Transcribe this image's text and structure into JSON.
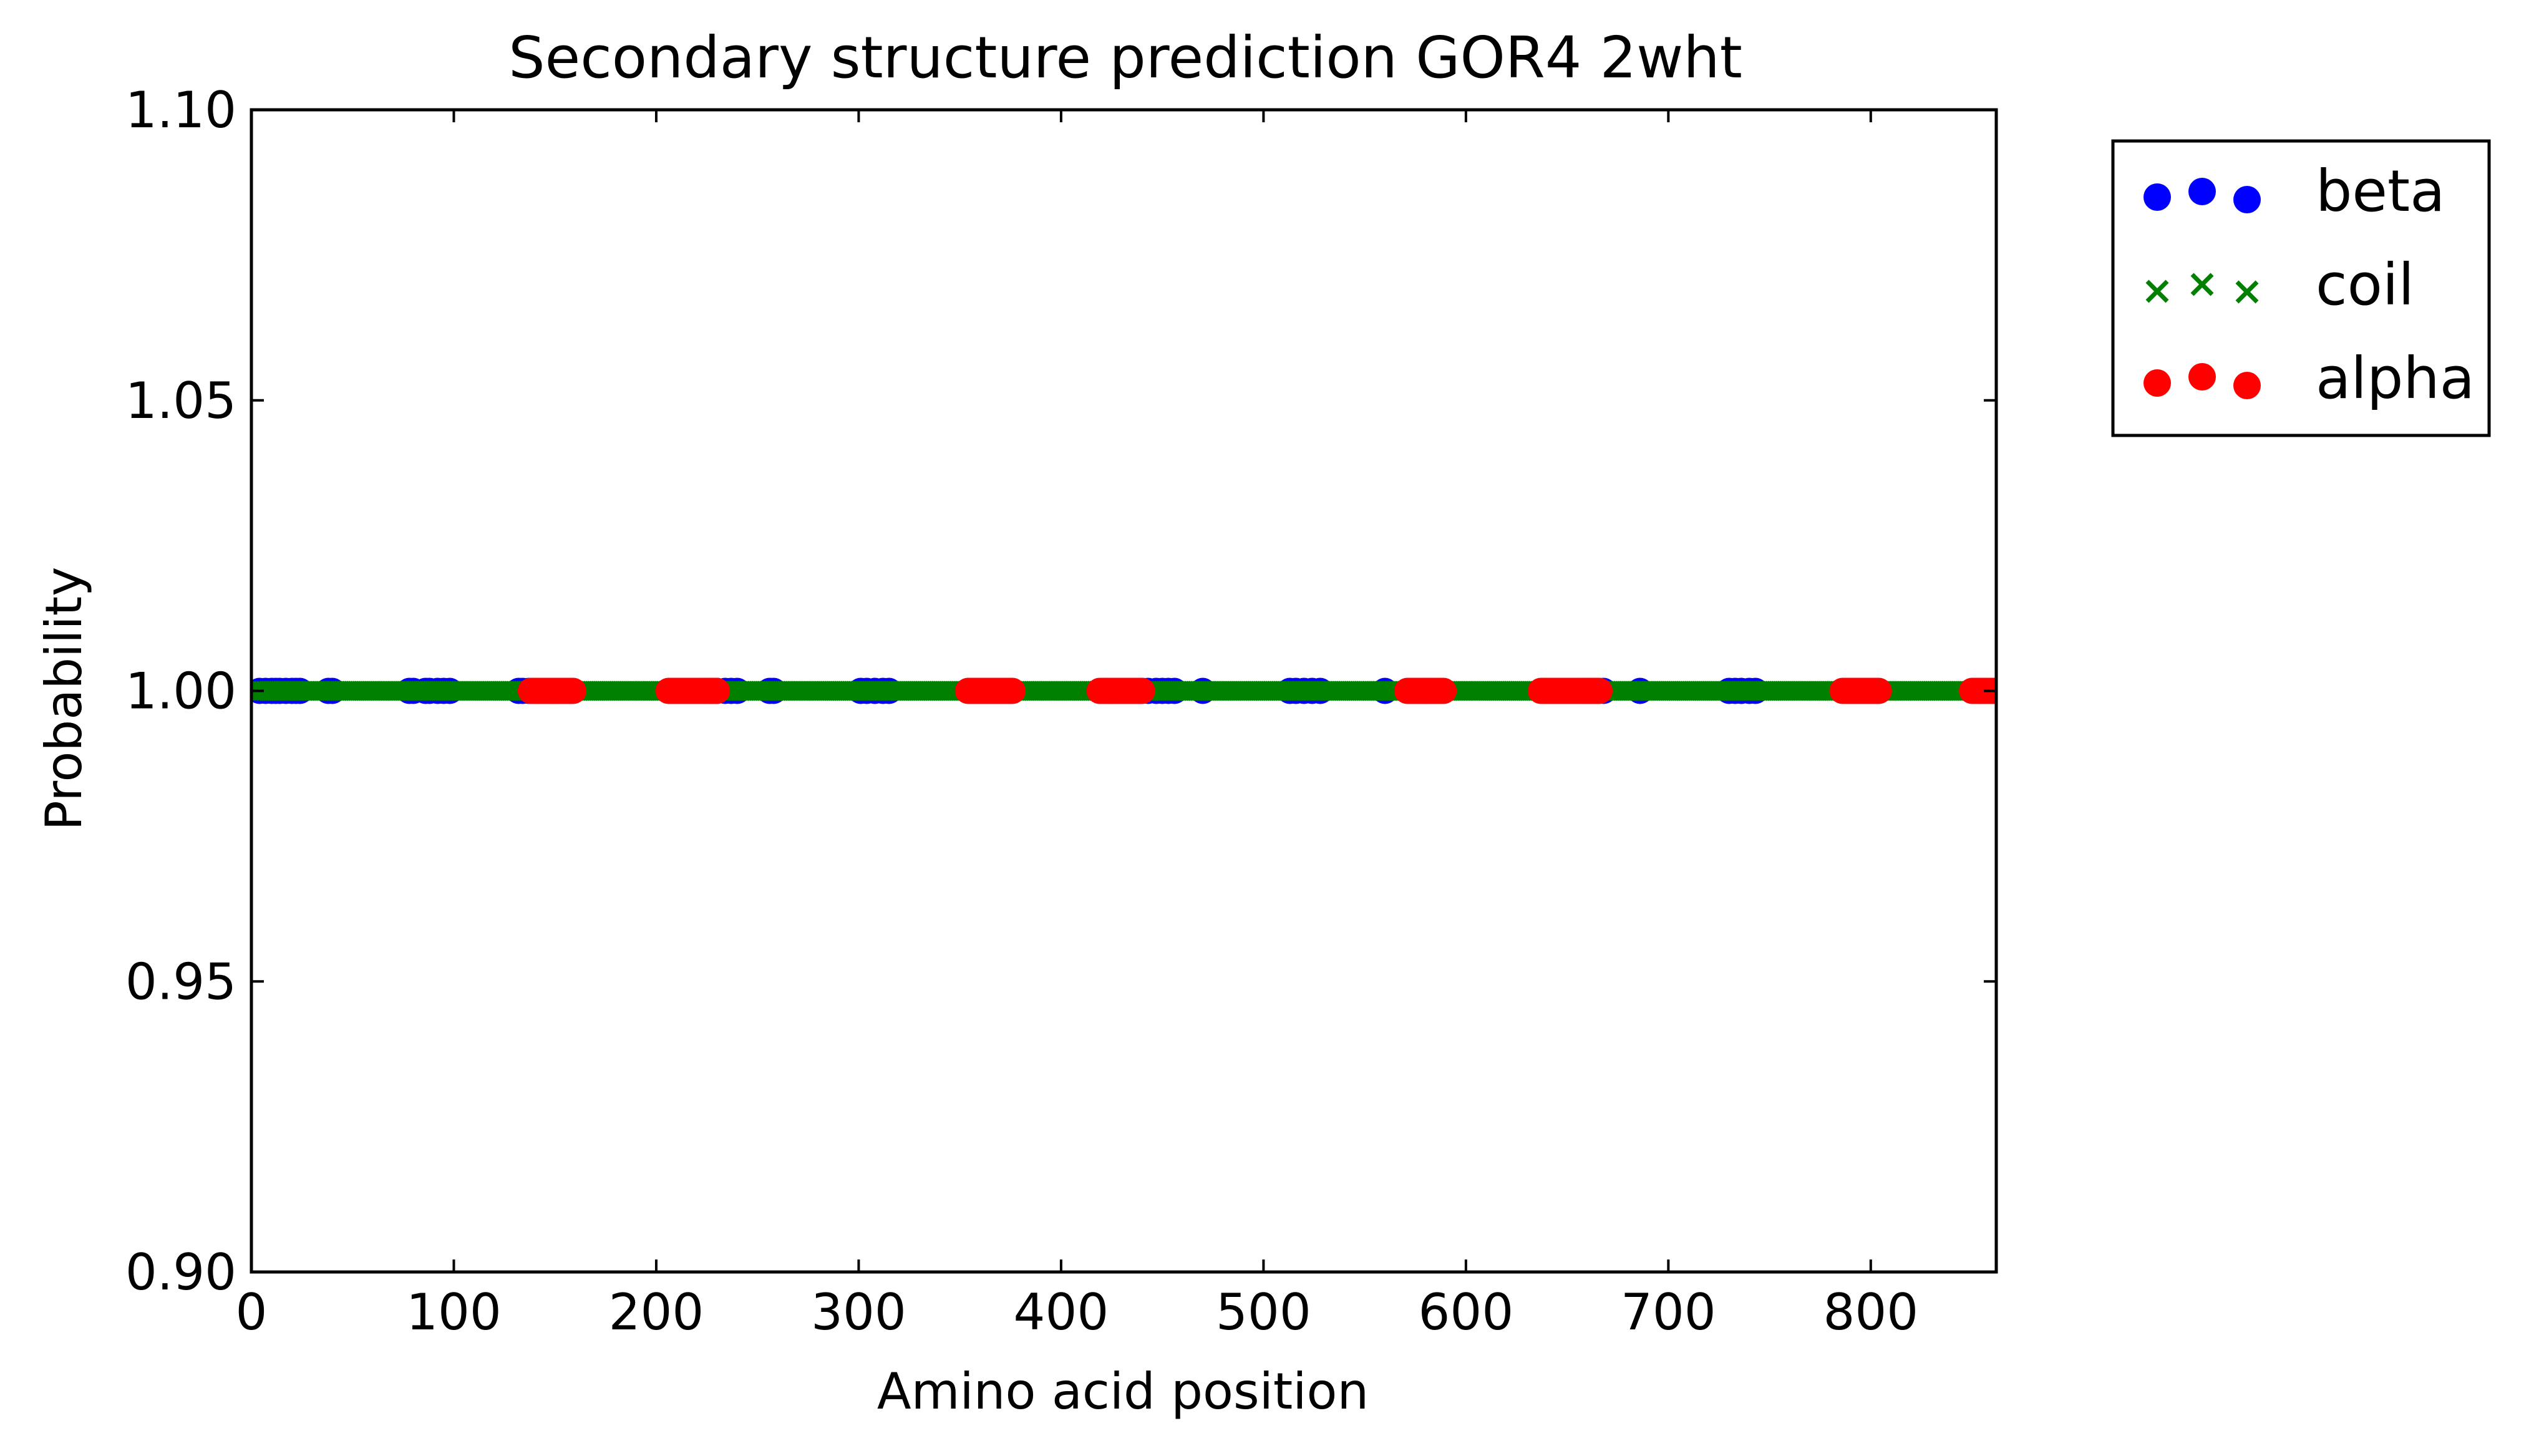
{
  "chart_data": {
    "type": "scatter",
    "title": "Secondary structure prediction GOR4 2wht",
    "xlabel": "Amino acid position",
    "ylabel": "Probability",
    "xlim": [
      0,
      862
    ],
    "ylim": [
      0.9,
      1.1
    ],
    "x_ticks": [
      0,
      100,
      200,
      300,
      400,
      500,
      600,
      700,
      800
    ],
    "x_tick_labels": [
      "0",
      "100",
      "200",
      "300",
      "400",
      "500",
      "600",
      "700",
      "800"
    ],
    "y_ticks": [
      0.9,
      0.95,
      1.0,
      1.05,
      1.1
    ],
    "y_tick_labels": [
      "0.90",
      "0.95",
      "1.00",
      "1.05",
      "1.10"
    ],
    "grid": false,
    "legend_position": "outside-top-right",
    "series": [
      {
        "name": "beta",
        "marker": "circle",
        "color": "#0000ff",
        "y": 1.0,
        "positions": [
          4,
          7,
          10,
          12,
          14,
          17,
          20,
          22,
          24,
          38,
          40,
          78,
          80,
          86,
          88,
          92,
          95,
          98,
          132,
          134,
          137,
          224,
          227,
          230,
          234,
          237,
          240,
          256,
          258,
          301,
          304,
          308,
          312,
          315,
          440,
          443,
          447,
          450,
          453,
          456,
          470,
          513,
          516,
          520,
          524,
          528,
          560,
          658,
          661,
          664,
          668,
          686,
          730,
          733,
          736,
          740,
          743
        ]
      },
      {
        "name": "coil",
        "marker": "x",
        "color": "#008000",
        "y": 1.0,
        "ranges": [
          [
            1,
            137
          ],
          [
            160,
            205
          ],
          [
            231,
            353
          ],
          [
            377,
            418
          ],
          [
            441,
            570
          ],
          [
            590,
            636
          ],
          [
            667,
            785
          ],
          [
            805,
            849
          ]
        ]
      },
      {
        "name": "alpha",
        "marker": "circle",
        "color": "#ff0000",
        "y": 1.0,
        "ranges": [
          [
            138,
            159
          ],
          [
            206,
            230
          ],
          [
            354,
            376
          ],
          [
            419,
            440
          ],
          [
            571,
            589
          ],
          [
            637,
            666
          ],
          [
            786,
            804
          ],
          [
            850,
            862
          ]
        ]
      }
    ]
  }
}
